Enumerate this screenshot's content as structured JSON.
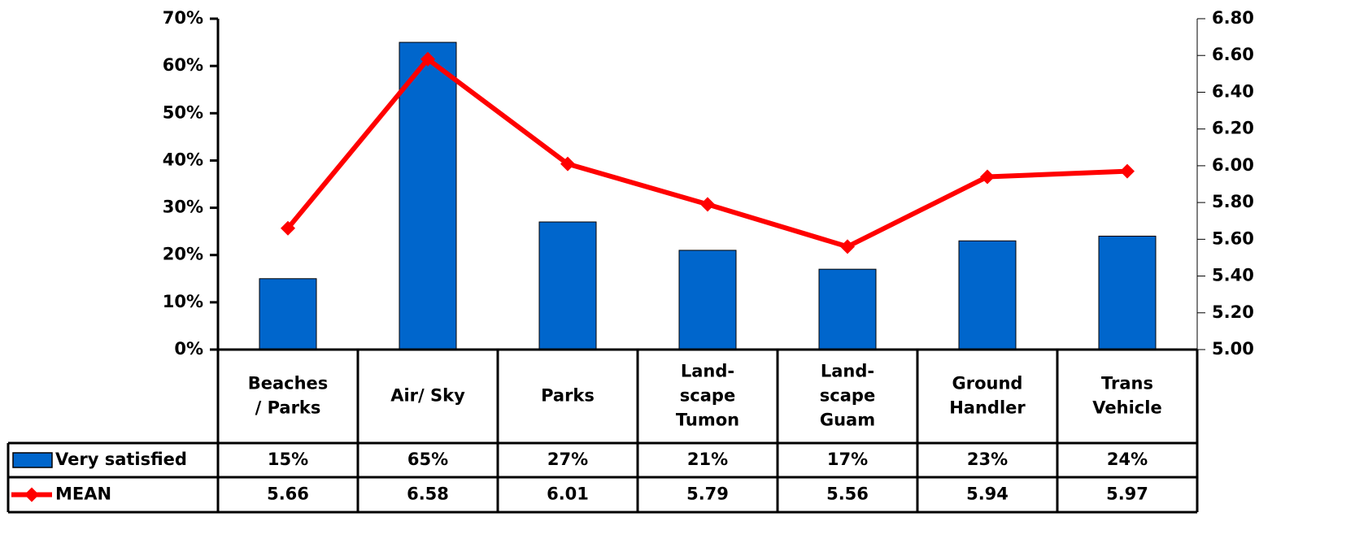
{
  "chart_data": {
    "type": "combo",
    "categories": [
      "Beaches\n/ Parks",
      "Air/ Sky",
      "Parks",
      "Land-\nscape\nTumon",
      "Land-\nscape\nGuam",
      "Ground\nHandler",
      "Trans\nVehicle"
    ],
    "series": [
      {
        "name": "Very satisfied",
        "type": "bar",
        "color": "#0066cc",
        "values": [
          15,
          65,
          27,
          21,
          17,
          23,
          24
        ],
        "value_labels": [
          "15%",
          "65%",
          "27%",
          "21%",
          "17%",
          "23%",
          "24%"
        ]
      },
      {
        "name": "MEAN",
        "type": "line",
        "axis": "y2",
        "color": "#ff0000",
        "values": [
          5.66,
          6.58,
          6.01,
          5.79,
          5.56,
          5.94,
          5.97
        ]
      }
    ],
    "ylim": [
      0,
      70
    ],
    "yticks": [
      {
        "value": 0,
        "label": "0%"
      },
      {
        "value": 10,
        "label": "10%"
      },
      {
        "value": 20,
        "label": "20%"
      },
      {
        "value": 30,
        "label": "30%"
      },
      {
        "value": 40,
        "label": "40%"
      },
      {
        "value": 50,
        "label": "50%"
      },
      {
        "value": 60,
        "label": "60%"
      },
      {
        "value": 70,
        "label": "70%"
      }
    ],
    "y2lim": [
      5,
      6.8
    ],
    "y2ticks": [
      {
        "value": 5,
        "label": "5.00"
      },
      {
        "value": 5.2,
        "label": "5.20"
      },
      {
        "value": 5.4,
        "label": "5.40"
      },
      {
        "value": 5.6,
        "label": "5.60"
      },
      {
        "value": 5.8,
        "label": "5.80"
      },
      {
        "value": 6,
        "label": "6.00"
      },
      {
        "value": 6.2,
        "label": "6.20"
      },
      {
        "value": 6.4,
        "label": "6.40"
      },
      {
        "value": 6.6,
        "label": "6.60"
      },
      {
        "value": 6.8,
        "label": "6.80"
      }
    ],
    "grid": false,
    "data_table": true
  }
}
